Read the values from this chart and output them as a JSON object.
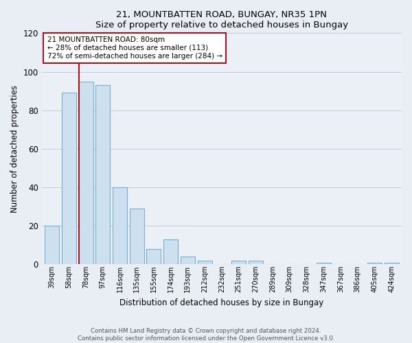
{
  "title": "21, MOUNTBATTEN ROAD, BUNGAY, NR35 1PN",
  "subtitle": "Size of property relative to detached houses in Bungay",
  "xlabel": "Distribution of detached houses by size in Bungay",
  "ylabel": "Number of detached properties",
  "categories": [
    "39sqm",
    "58sqm",
    "78sqm",
    "97sqm",
    "116sqm",
    "135sqm",
    "155sqm",
    "174sqm",
    "193sqm",
    "212sqm",
    "232sqm",
    "251sqm",
    "270sqm",
    "289sqm",
    "309sqm",
    "328sqm",
    "347sqm",
    "367sqm",
    "386sqm",
    "405sqm",
    "424sqm"
  ],
  "values": [
    20,
    89,
    95,
    93,
    40,
    29,
    8,
    13,
    4,
    2,
    0,
    2,
    2,
    0,
    0,
    0,
    1,
    0,
    0,
    1,
    1
  ],
  "bar_fill_color": "#cce0f0",
  "bar_edge_color": "#7aaecc",
  "highlight_color": "#aa1122",
  "highlight_index": 2,
  "ylim": [
    0,
    120
  ],
  "yticks": [
    0,
    20,
    40,
    60,
    80,
    100,
    120
  ],
  "annotation_lines": [
    "21 MOUNTBATTEN ROAD: 80sqm",
    "← 28% of detached houses are smaller (113)",
    "72% of semi-detached houses are larger (284) →"
  ],
  "footer_line1": "Contains HM Land Registry data © Crown copyright and database right 2024.",
  "footer_line2": "Contains public sector information licensed under the Open Government Licence v3.0.",
  "bg_color": "#e8eef4",
  "plot_bg_color": "#eaf0f6",
  "grid_color": "#c0ccd8"
}
